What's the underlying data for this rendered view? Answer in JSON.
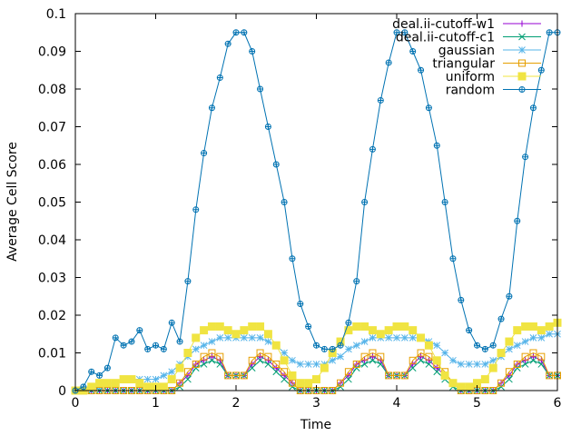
{
  "chart_data": {
    "type": "line",
    "xlabel": "Time",
    "ylabel": "Average Cell Score",
    "xlim": [
      0,
      6
    ],
    "ylim": [
      0,
      0.1
    ],
    "xticks": [
      "0",
      "1",
      "2",
      "3",
      "4",
      "5",
      "6"
    ],
    "yticks": [
      "0",
      "0.01",
      "0.02",
      "0.03",
      "0.04",
      "0.05",
      "0.06",
      "0.07",
      "0.08",
      "0.09",
      "0.1"
    ],
    "grid": false,
    "legend_position": "top-right",
    "series": [
      {
        "name": "deal.ii-cutoff-w1",
        "color": "#9400d3",
        "marker": "plus",
        "x": [
          0.0,
          0.1,
          0.2,
          0.3,
          0.4,
          0.5,
          0.6,
          0.7,
          0.8,
          0.9,
          1.0,
          1.1,
          1.2,
          1.3,
          1.4,
          1.5,
          1.6,
          1.7,
          1.8,
          1.9,
          2.0,
          2.1,
          2.2,
          2.3,
          2.4,
          2.5,
          2.6,
          2.7,
          2.8,
          2.9,
          3.0,
          3.1,
          3.2,
          3.3,
          3.4,
          3.5,
          3.6,
          3.7,
          3.8,
          3.9,
          4.0,
          4.1,
          4.2,
          4.3,
          4.4,
          4.5,
          4.6,
          4.7,
          4.8,
          4.9,
          5.0,
          5.1,
          5.2,
          5.3,
          5.4,
          5.5,
          5.6,
          5.7,
          5.8,
          5.9,
          6.0
        ],
        "values": [
          0,
          0,
          0,
          0,
          0,
          0,
          0,
          0,
          0,
          0,
          0,
          0,
          0,
          0.002,
          0.004,
          0.007,
          0.008,
          0.009,
          0.008,
          0.004,
          0.004,
          0.004,
          0.007,
          0.009,
          0.008,
          0.006,
          0.004,
          0.002,
          0,
          0,
          0,
          0,
          0,
          0.002,
          0.004,
          0.007,
          0.008,
          0.009,
          0.008,
          0.004,
          0.004,
          0.004,
          0.007,
          0.009,
          0.008,
          0.006,
          0.004,
          0.002,
          0,
          0,
          0,
          0,
          0,
          0.002,
          0.004,
          0.007,
          0.008,
          0.009,
          0.008,
          0.004,
          0.004
        ]
      },
      {
        "name": "deal.ii-cutoff-c1",
        "color": "#009e73",
        "marker": "x",
        "x": [
          0.0,
          0.1,
          0.2,
          0.3,
          0.4,
          0.5,
          0.6,
          0.7,
          0.8,
          0.9,
          1.0,
          1.1,
          1.2,
          1.3,
          1.4,
          1.5,
          1.6,
          1.7,
          1.8,
          1.9,
          2.0,
          2.1,
          2.2,
          2.3,
          2.4,
          2.5,
          2.6,
          2.7,
          2.8,
          2.9,
          3.0,
          3.1,
          3.2,
          3.3,
          3.4,
          3.5,
          3.6,
          3.7,
          3.8,
          3.9,
          4.0,
          4.1,
          4.2,
          4.3,
          4.4,
          4.5,
          4.6,
          4.7,
          4.8,
          4.9,
          5.0,
          5.1,
          5.2,
          5.3,
          5.4,
          5.5,
          5.6,
          5.7,
          5.8,
          5.9,
          6.0
        ],
        "values": [
          0,
          0,
          0,
          0,
          0,
          0,
          0,
          0,
          0,
          0,
          0,
          0,
          0,
          0.001,
          0.003,
          0.006,
          0.007,
          0.008,
          0.007,
          0.004,
          0.004,
          0.004,
          0.006,
          0.008,
          0.007,
          0.005,
          0.003,
          0.001,
          0,
          0,
          0,
          0,
          0,
          0.001,
          0.003,
          0.006,
          0.007,
          0.008,
          0.007,
          0.004,
          0.004,
          0.004,
          0.006,
          0.008,
          0.007,
          0.005,
          0.003,
          0.001,
          0,
          0,
          0,
          0,
          0,
          0.001,
          0.003,
          0.006,
          0.007,
          0.008,
          0.007,
          0.004,
          0.004
        ]
      },
      {
        "name": "gaussian",
        "color": "#56b4e9",
        "marker": "star",
        "x": [
          0.0,
          0.1,
          0.2,
          0.3,
          0.4,
          0.5,
          0.6,
          0.7,
          0.8,
          0.9,
          1.0,
          1.1,
          1.2,
          1.3,
          1.4,
          1.5,
          1.6,
          1.7,
          1.8,
          1.9,
          2.0,
          2.1,
          2.2,
          2.3,
          2.4,
          2.5,
          2.6,
          2.7,
          2.8,
          2.9,
          3.0,
          3.1,
          3.2,
          3.3,
          3.4,
          3.5,
          3.6,
          3.7,
          3.8,
          3.9,
          4.0,
          4.1,
          4.2,
          4.3,
          4.4,
          4.5,
          4.6,
          4.7,
          4.8,
          4.9,
          5.0,
          5.1,
          5.2,
          5.3,
          5.4,
          5.5,
          5.6,
          5.7,
          5.8,
          5.9,
          6.0
        ],
        "values": [
          0,
          0,
          0.001,
          0.001,
          0.002,
          0.002,
          0.003,
          0.003,
          0.003,
          0.003,
          0.003,
          0.004,
          0.005,
          0.007,
          0.009,
          0.011,
          0.012,
          0.013,
          0.014,
          0.014,
          0.014,
          0.014,
          0.014,
          0.014,
          0.013,
          0.012,
          0.01,
          0.008,
          0.007,
          0.007,
          0.007,
          0.007,
          0.008,
          0.009,
          0.011,
          0.012,
          0.013,
          0.014,
          0.014,
          0.014,
          0.014,
          0.014,
          0.014,
          0.014,
          0.013,
          0.012,
          0.01,
          0.008,
          0.007,
          0.007,
          0.007,
          0.007,
          0.008,
          0.009,
          0.011,
          0.012,
          0.013,
          0.014,
          0.014,
          0.015,
          0.015
        ]
      },
      {
        "name": "triangular",
        "color": "#e69f00",
        "marker": "square",
        "x": [
          0.0,
          0.1,
          0.2,
          0.3,
          0.4,
          0.5,
          0.6,
          0.7,
          0.8,
          0.9,
          1.0,
          1.1,
          1.2,
          1.3,
          1.4,
          1.5,
          1.6,
          1.7,
          1.8,
          1.9,
          2.0,
          2.1,
          2.2,
          2.3,
          2.4,
          2.5,
          2.6,
          2.7,
          2.8,
          2.9,
          3.0,
          3.1,
          3.2,
          3.3,
          3.4,
          3.5,
          3.6,
          3.7,
          3.8,
          3.9,
          4.0,
          4.1,
          4.2,
          4.3,
          4.4,
          4.5,
          4.6,
          4.7,
          4.8,
          4.9,
          5.0,
          5.1,
          5.2,
          5.3,
          5.4,
          5.5,
          5.6,
          5.7,
          5.8,
          5.9,
          6.0
        ],
        "values": [
          0,
          0,
          0,
          0,
          0,
          0,
          0,
          0,
          0,
          0,
          0,
          0,
          0,
          0.002,
          0.005,
          0.007,
          0.009,
          0.01,
          0.009,
          0.004,
          0.004,
          0.004,
          0.008,
          0.01,
          0.009,
          0.007,
          0.005,
          0.002,
          0,
          0,
          0,
          0,
          0,
          0.002,
          0.005,
          0.007,
          0.009,
          0.01,
          0.009,
          0.004,
          0.004,
          0.004,
          0.008,
          0.01,
          0.009,
          0.007,
          0.005,
          0.002,
          0,
          0,
          0,
          0,
          0,
          0.002,
          0.005,
          0.007,
          0.009,
          0.01,
          0.009,
          0.004,
          0.004
        ]
      },
      {
        "name": "uniform",
        "color": "#f0e442",
        "marker": "filled-square",
        "x": [
          0.0,
          0.1,
          0.2,
          0.3,
          0.4,
          0.5,
          0.6,
          0.7,
          0.8,
          0.9,
          1.0,
          1.1,
          1.2,
          1.3,
          1.4,
          1.5,
          1.6,
          1.7,
          1.8,
          1.9,
          2.0,
          2.1,
          2.2,
          2.3,
          2.4,
          2.5,
          2.6,
          2.7,
          2.8,
          2.9,
          3.0,
          3.1,
          3.2,
          3.3,
          3.4,
          3.5,
          3.6,
          3.7,
          3.8,
          3.9,
          4.0,
          4.1,
          4.2,
          4.3,
          4.4,
          4.5,
          4.6,
          4.7,
          4.8,
          4.9,
          5.0,
          5.1,
          5.2,
          5.3,
          5.4,
          5.5,
          5.6,
          5.7,
          5.8,
          5.9,
          6.0
        ],
        "values": [
          0,
          0,
          0.001,
          0.002,
          0.002,
          0.002,
          0.003,
          0.003,
          0.002,
          0.001,
          0.001,
          0.001,
          0.003,
          0.006,
          0.01,
          0.014,
          0.016,
          0.017,
          0.017,
          0.016,
          0.015,
          0.016,
          0.017,
          0.017,
          0.015,
          0.012,
          0.008,
          0.004,
          0.002,
          0.002,
          0.003,
          0.006,
          0.01,
          0.013,
          0.016,
          0.017,
          0.017,
          0.016,
          0.015,
          0.016,
          0.017,
          0.017,
          0.016,
          0.014,
          0.012,
          0.008,
          0.004,
          0.002,
          0.001,
          0.001,
          0.002,
          0.003,
          0.006,
          0.01,
          0.013,
          0.016,
          0.017,
          0.017,
          0.016,
          0.017,
          0.018
        ]
      },
      {
        "name": "random",
        "color": "#0072b2",
        "marker": "circle-plus",
        "x": [
          0.0,
          0.1,
          0.2,
          0.3,
          0.4,
          0.5,
          0.6,
          0.7,
          0.8,
          0.9,
          1.0,
          1.1,
          1.2,
          1.3,
          1.4,
          1.5,
          1.6,
          1.7,
          1.8,
          1.9,
          2.0,
          2.1,
          2.2,
          2.3,
          2.4,
          2.5,
          2.6,
          2.7,
          2.8,
          2.9,
          3.0,
          3.1,
          3.2,
          3.3,
          3.4,
          3.5,
          3.6,
          3.7,
          3.8,
          3.9,
          4.0,
          4.1,
          4.2,
          4.3,
          4.4,
          4.5,
          4.6,
          4.7,
          4.8,
          4.9,
          5.0,
          5.1,
          5.2,
          5.3,
          5.4,
          5.5,
          5.6,
          5.7,
          5.8,
          5.9,
          6.0
        ],
        "values": [
          0,
          0.001,
          0.005,
          0.004,
          0.006,
          0.014,
          0.012,
          0.013,
          0.016,
          0.011,
          0.012,
          0.011,
          0.018,
          0.013,
          0.029,
          0.048,
          0.063,
          0.075,
          0.083,
          0.092,
          0.095,
          0.095,
          0.09,
          0.08,
          0.07,
          0.06,
          0.05,
          0.035,
          0.023,
          0.017,
          0.012,
          0.011,
          0.011,
          0.012,
          0.018,
          0.029,
          0.05,
          0.064,
          0.077,
          0.087,
          0.095,
          0.095,
          0.09,
          0.085,
          0.075,
          0.065,
          0.05,
          0.035,
          0.024,
          0.016,
          0.012,
          0.011,
          0.012,
          0.019,
          0.025,
          0.045,
          0.062,
          0.075,
          0.085,
          0.095,
          0.095
        ]
      }
    ]
  }
}
